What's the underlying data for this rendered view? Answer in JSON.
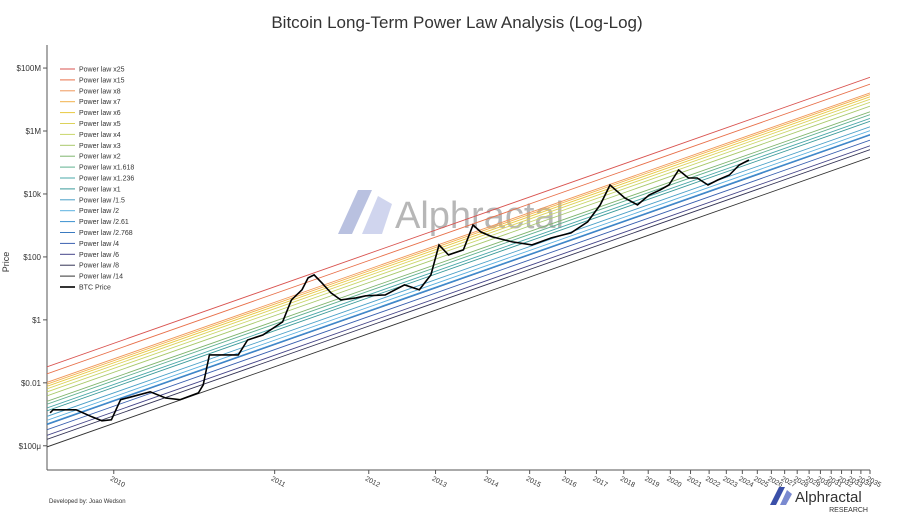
{
  "chart_data": {
    "type": "line",
    "title": "Bitcoin Long-Term Power Law Analysis (Log-Log)",
    "y_label": "Price",
    "xscale": "log",
    "yscale": "log",
    "legend": "top-left",
    "xlim": [
      2009.75,
      2035
    ],
    "ylim": [
      1.7e-05,
      540000000
    ],
    "xticks": [
      2010,
      2011,
      2012,
      2013,
      2014,
      2015,
      2016,
      2017,
      2018,
      2019,
      2020,
      2021,
      2022,
      2023,
      2024,
      2025,
      2026,
      2027,
      2028,
      2029,
      2030,
      2031,
      2032,
      2033,
      2034,
      2035
    ],
    "yticks": [
      {
        "value": 0.0001,
        "label": "$100μ"
      },
      {
        "value": 0.01,
        "label": "$0.01"
      },
      {
        "value": 1,
        "label": "$1"
      },
      {
        "value": 100,
        "label": "$100"
      },
      {
        "value": 10000,
        "label": "$10k"
      },
      {
        "value": 1000000,
        "label": "$1M"
      },
      {
        "value": 100000000,
        "label": "$100M"
      }
    ],
    "series": [
      {
        "name": "Power law x25",
        "color": "#d9534f",
        "x": [
          2009.75,
          2035
        ],
        "values": [
          0.0322,
          51000000
        ]
      },
      {
        "name": "Power law x15",
        "color": "#e8704a",
        "x": [
          2009.75,
          2035
        ],
        "values": [
          0.0193,
          30600000
        ]
      },
      {
        "name": "Power law x8",
        "color": "#f0985a",
        "x": [
          2009.75,
          2035
        ],
        "values": [
          0.0103,
          16300000
        ]
      },
      {
        "name": "Power law x7",
        "color": "#f2b04a",
        "x": [
          2009.75,
          2035
        ],
        "values": [
          0.00903,
          14300000
        ]
      },
      {
        "name": "Power law x6",
        "color": "#e8c840",
        "x": [
          2009.75,
          2035
        ],
        "values": [
          0.00774,
          12200000
        ]
      },
      {
        "name": "Power law x5",
        "color": "#dcd25a",
        "x": [
          2009.75,
          2035
        ],
        "values": [
          0.00645,
          10200000
        ]
      },
      {
        "name": "Power law x4",
        "color": "#c9d66a",
        "x": [
          2009.75,
          2035
        ],
        "values": [
          0.00516,
          8160000
        ]
      },
      {
        "name": "Power law x3",
        "color": "#a8c86a",
        "x": [
          2009.75,
          2035
        ],
        "values": [
          0.00387,
          6120000
        ]
      },
      {
        "name": "Power law x2",
        "color": "#7fb56e",
        "x": [
          2009.75,
          2035
        ],
        "values": [
          0.00258,
          4080000
        ]
      },
      {
        "name": "Power law x1.618",
        "color": "#5fb090",
        "x": [
          2009.75,
          2035
        ],
        "values": [
          0.00209,
          3300000
        ]
      },
      {
        "name": "Power law x1.236",
        "color": "#4aa8a8",
        "x": [
          2009.75,
          2035
        ],
        "values": [
          0.00159,
          2520000
        ]
      },
      {
        "name": "Power law x1",
        "color": "#3a9a9a",
        "x": [
          2009.75,
          2035
        ],
        "values": [
          0.00129,
          2040000
        ]
      },
      {
        "name": "Power law /1.5",
        "color": "#4aa0c8",
        "x": [
          2009.75,
          2035
        ],
        "values": [
          0.00086,
          1360000
        ]
      },
      {
        "name": "Power law /2",
        "color": "#5ab0e0",
        "x": [
          2009.75,
          2035
        ],
        "values": [
          0.000645,
          1020000
        ]
      },
      {
        "name": "Power law /2.61",
        "color": "#3a90d0",
        "x": [
          2009.75,
          2035
        ],
        "values": [
          0.000494,
          782000
        ]
      },
      {
        "name": "Power law /2.768",
        "color": "#3a7ac0",
        "x": [
          2009.75,
          2035
        ],
        "values": [
          0.000466,
          737000
        ]
      },
      {
        "name": "Power law /4",
        "color": "#3a60b0",
        "x": [
          2009.75,
          2035
        ],
        "values": [
          0.000323,
          510000
        ]
      },
      {
        "name": "Power law /6",
        "color": "#444488",
        "x": [
          2009.75,
          2035
        ],
        "values": [
          0.000215,
          340000
        ]
      },
      {
        "name": "Power law /8",
        "color": "#333355",
        "x": [
          2009.75,
          2035
        ],
        "values": [
          0.000161,
          255000
        ]
      },
      {
        "name": "Power law /14",
        "color": "#333333",
        "x": [
          2009.75,
          2035
        ],
        "values": [
          9.21e-05,
          146000
        ]
      },
      {
        "name": "BTC Price",
        "color": "#000000",
        "width": 1.6,
        "x": [
          2009.76,
          2009.77,
          2009.8,
          2009.85,
          2009.91,
          2009.95,
          2009.99,
          2010.03,
          2010.17,
          2010.25,
          2010.33,
          2010.44,
          2010.47,
          2010.51,
          2010.71,
          2010.78,
          2010.9,
          2011.07,
          2011.15,
          2011.25,
          2011.31,
          2011.37,
          2011.45,
          2011.55,
          2011.66,
          2011.84,
          2011.96,
          2012.22,
          2012.5,
          2012.73,
          2012.92,
          2013.06,
          2013.23,
          2013.51,
          2013.7,
          2013.86,
          2014.11,
          2014.57,
          2015.06,
          2015.59,
          2016.17,
          2016.7,
          2017.13,
          2017.48,
          2018.04,
          2018.55,
          2019.04,
          2019.52,
          2019.93,
          2020.4,
          2020.89,
          2021.35,
          2021.94,
          2022.49,
          2023.19,
          2023.8,
          2024.44
        ],
        "values": [
          0.00112,
          0.00139,
          0.00139,
          0.00139,
          0.00083,
          0.00062,
          0.00067,
          0.0029,
          0.0052,
          0.0033,
          0.0029,
          0.0048,
          0.0086,
          0.077,
          0.077,
          0.23,
          0.33,
          0.86,
          4.3,
          9.0,
          21.5,
          26.8,
          15,
          7.2,
          4.3,
          5.0,
          5.8,
          6.2,
          12.9,
          9.0,
          26.8,
          240,
          116,
          167,
          1036,
          622,
          432,
          299,
          240,
          401,
          578,
          1291,
          4477,
          19300,
          7460,
          4477,
          9290,
          13400,
          19300,
          57800,
          32200,
          32200,
          19300,
          27800,
          40100,
          83400,
          120000
        ]
      }
    ],
    "watermark": "Alphractal",
    "brand": "Alphractal",
    "brand_sub": "RESEARCH",
    "credit": "Developed by: Joao Wedson"
  }
}
